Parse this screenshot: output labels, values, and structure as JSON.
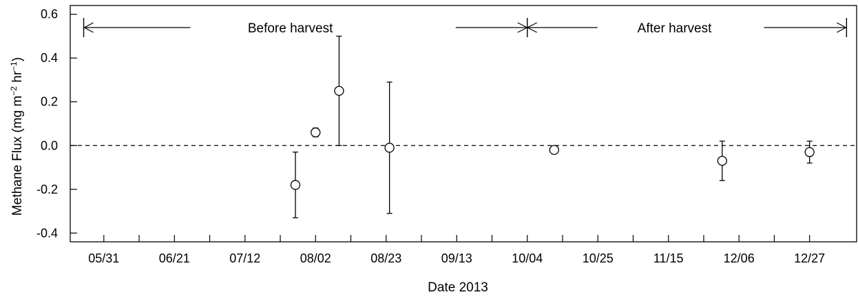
{
  "chart_data": {
    "type": "scatter",
    "title": "",
    "xlabel": "Date 2013",
    "ylabel": {
      "base": "Methane Flux (mg m",
      "exp1": "−2",
      "mid": " hr",
      "exp2": "−1",
      "end": ")"
    },
    "x_ticks": [
      {
        "date": "2013-05-31",
        "label": "05/31"
      },
      {
        "date": "2013-06-21",
        "label": "06/21"
      },
      {
        "date": "2013-07-12",
        "label": "07/12"
      },
      {
        "date": "2013-08-02",
        "label": "08/02"
      },
      {
        "date": "2013-08-23",
        "label": "08/23"
      },
      {
        "date": "2013-09-13",
        "label": "09/13"
      },
      {
        "date": "2013-10-04",
        "label": "10/04"
      },
      {
        "date": "2013-10-25",
        "label": "10/25"
      },
      {
        "date": "2013-11-15",
        "label": "11/15"
      },
      {
        "date": "2013-12-06",
        "label": "12/06"
      },
      {
        "date": "2013-12-27",
        "label": "12/27"
      }
    ],
    "y_ticks": [
      {
        "value": -0.4,
        "label": "-0.4"
      },
      {
        "value": -0.2,
        "label": "-0.2"
      },
      {
        "value": 0.0,
        "label": "0.0"
      },
      {
        "value": 0.2,
        "label": "0.2"
      },
      {
        "value": 0.4,
        "label": "0.4"
      },
      {
        "value": 0.6,
        "label": "0.6"
      }
    ],
    "xlim": [
      "2013-05-21",
      "2014-01-10"
    ],
    "ylim": [
      -0.44,
      0.64
    ],
    "reference_line": {
      "y": 0.0,
      "style": "dashed"
    },
    "points": [
      {
        "date": "2013-07-27",
        "y": -0.18,
        "low": -0.33,
        "high": -0.03
      },
      {
        "date": "2013-08-02",
        "y": 0.06,
        "low": 0.04,
        "high": 0.08
      },
      {
        "date": "2013-08-09",
        "y": 0.25,
        "low": 0.0,
        "high": 0.5
      },
      {
        "date": "2013-08-24",
        "y": -0.01,
        "low": -0.31,
        "high": 0.29
      },
      {
        "date": "2013-10-12",
        "y": -0.02,
        "low": -0.02,
        "high": -0.02
      },
      {
        "date": "2013-12-01",
        "y": -0.07,
        "low": -0.16,
        "high": 0.02
      },
      {
        "date": "2013-12-27",
        "y": -0.03,
        "low": -0.08,
        "high": 0.02
      }
    ],
    "periods": [
      {
        "label": "Before harvest",
        "start": "2013-05-25",
        "end": "2013-10-04"
      },
      {
        "label": "After harvest",
        "start": "2013-10-04",
        "end": "2014-01-07"
      }
    ],
    "grid": false,
    "legend": "none"
  }
}
